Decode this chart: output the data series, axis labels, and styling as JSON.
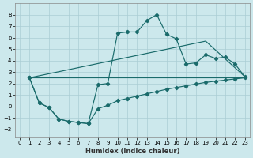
{
  "xlabel": "Humidex (Indice chaleur)",
  "background_color": "#cce8ec",
  "grid_color": "#aacdd4",
  "line_color": "#1a6b6b",
  "xlim": [
    -0.5,
    23.5
  ],
  "ylim": [
    -2.7,
    9.0
  ],
  "yticks": [
    -2,
    -1,
    0,
    1,
    2,
    3,
    4,
    5,
    6,
    7,
    8
  ],
  "xticks": [
    0,
    1,
    2,
    3,
    4,
    5,
    6,
    7,
    8,
    9,
    10,
    11,
    12,
    13,
    14,
    15,
    16,
    17,
    18,
    19,
    20,
    21,
    22,
    23
  ],
  "series_main_x": [
    1,
    2,
    3,
    4,
    5,
    6,
    7,
    8,
    9,
    10,
    11,
    12,
    13,
    14,
    15,
    16,
    17,
    18,
    19,
    20,
    21,
    22,
    23
  ],
  "series_main_y": [
    2.5,
    0.3,
    -0.1,
    -1.1,
    -1.3,
    -1.4,
    -1.5,
    1.9,
    2.0,
    6.4,
    6.5,
    6.5,
    7.5,
    8.0,
    6.3,
    5.9,
    3.7,
    3.8,
    4.5,
    4.2,
    4.3,
    3.7,
    2.6
  ],
  "series_upper_line_x": [
    1,
    19,
    23
  ],
  "series_upper_line_y": [
    2.5,
    5.7,
    2.6
  ],
  "series_lower_line_x": [
    1,
    23
  ],
  "series_lower_line_y": [
    2.5,
    2.5
  ],
  "series_bottom_x": [
    1,
    2,
    3,
    4,
    5,
    6,
    7,
    8,
    9,
    10,
    11,
    12,
    13,
    14,
    15,
    16,
    17,
    18,
    19,
    20,
    21,
    22,
    23
  ],
  "series_bottom_y": [
    2.5,
    0.3,
    -0.1,
    -1.1,
    -1.3,
    -1.4,
    -1.5,
    -0.2,
    0.1,
    0.5,
    0.7,
    0.9,
    1.1,
    1.3,
    1.5,
    1.65,
    1.8,
    1.95,
    2.1,
    2.2,
    2.3,
    2.4,
    2.5
  ]
}
